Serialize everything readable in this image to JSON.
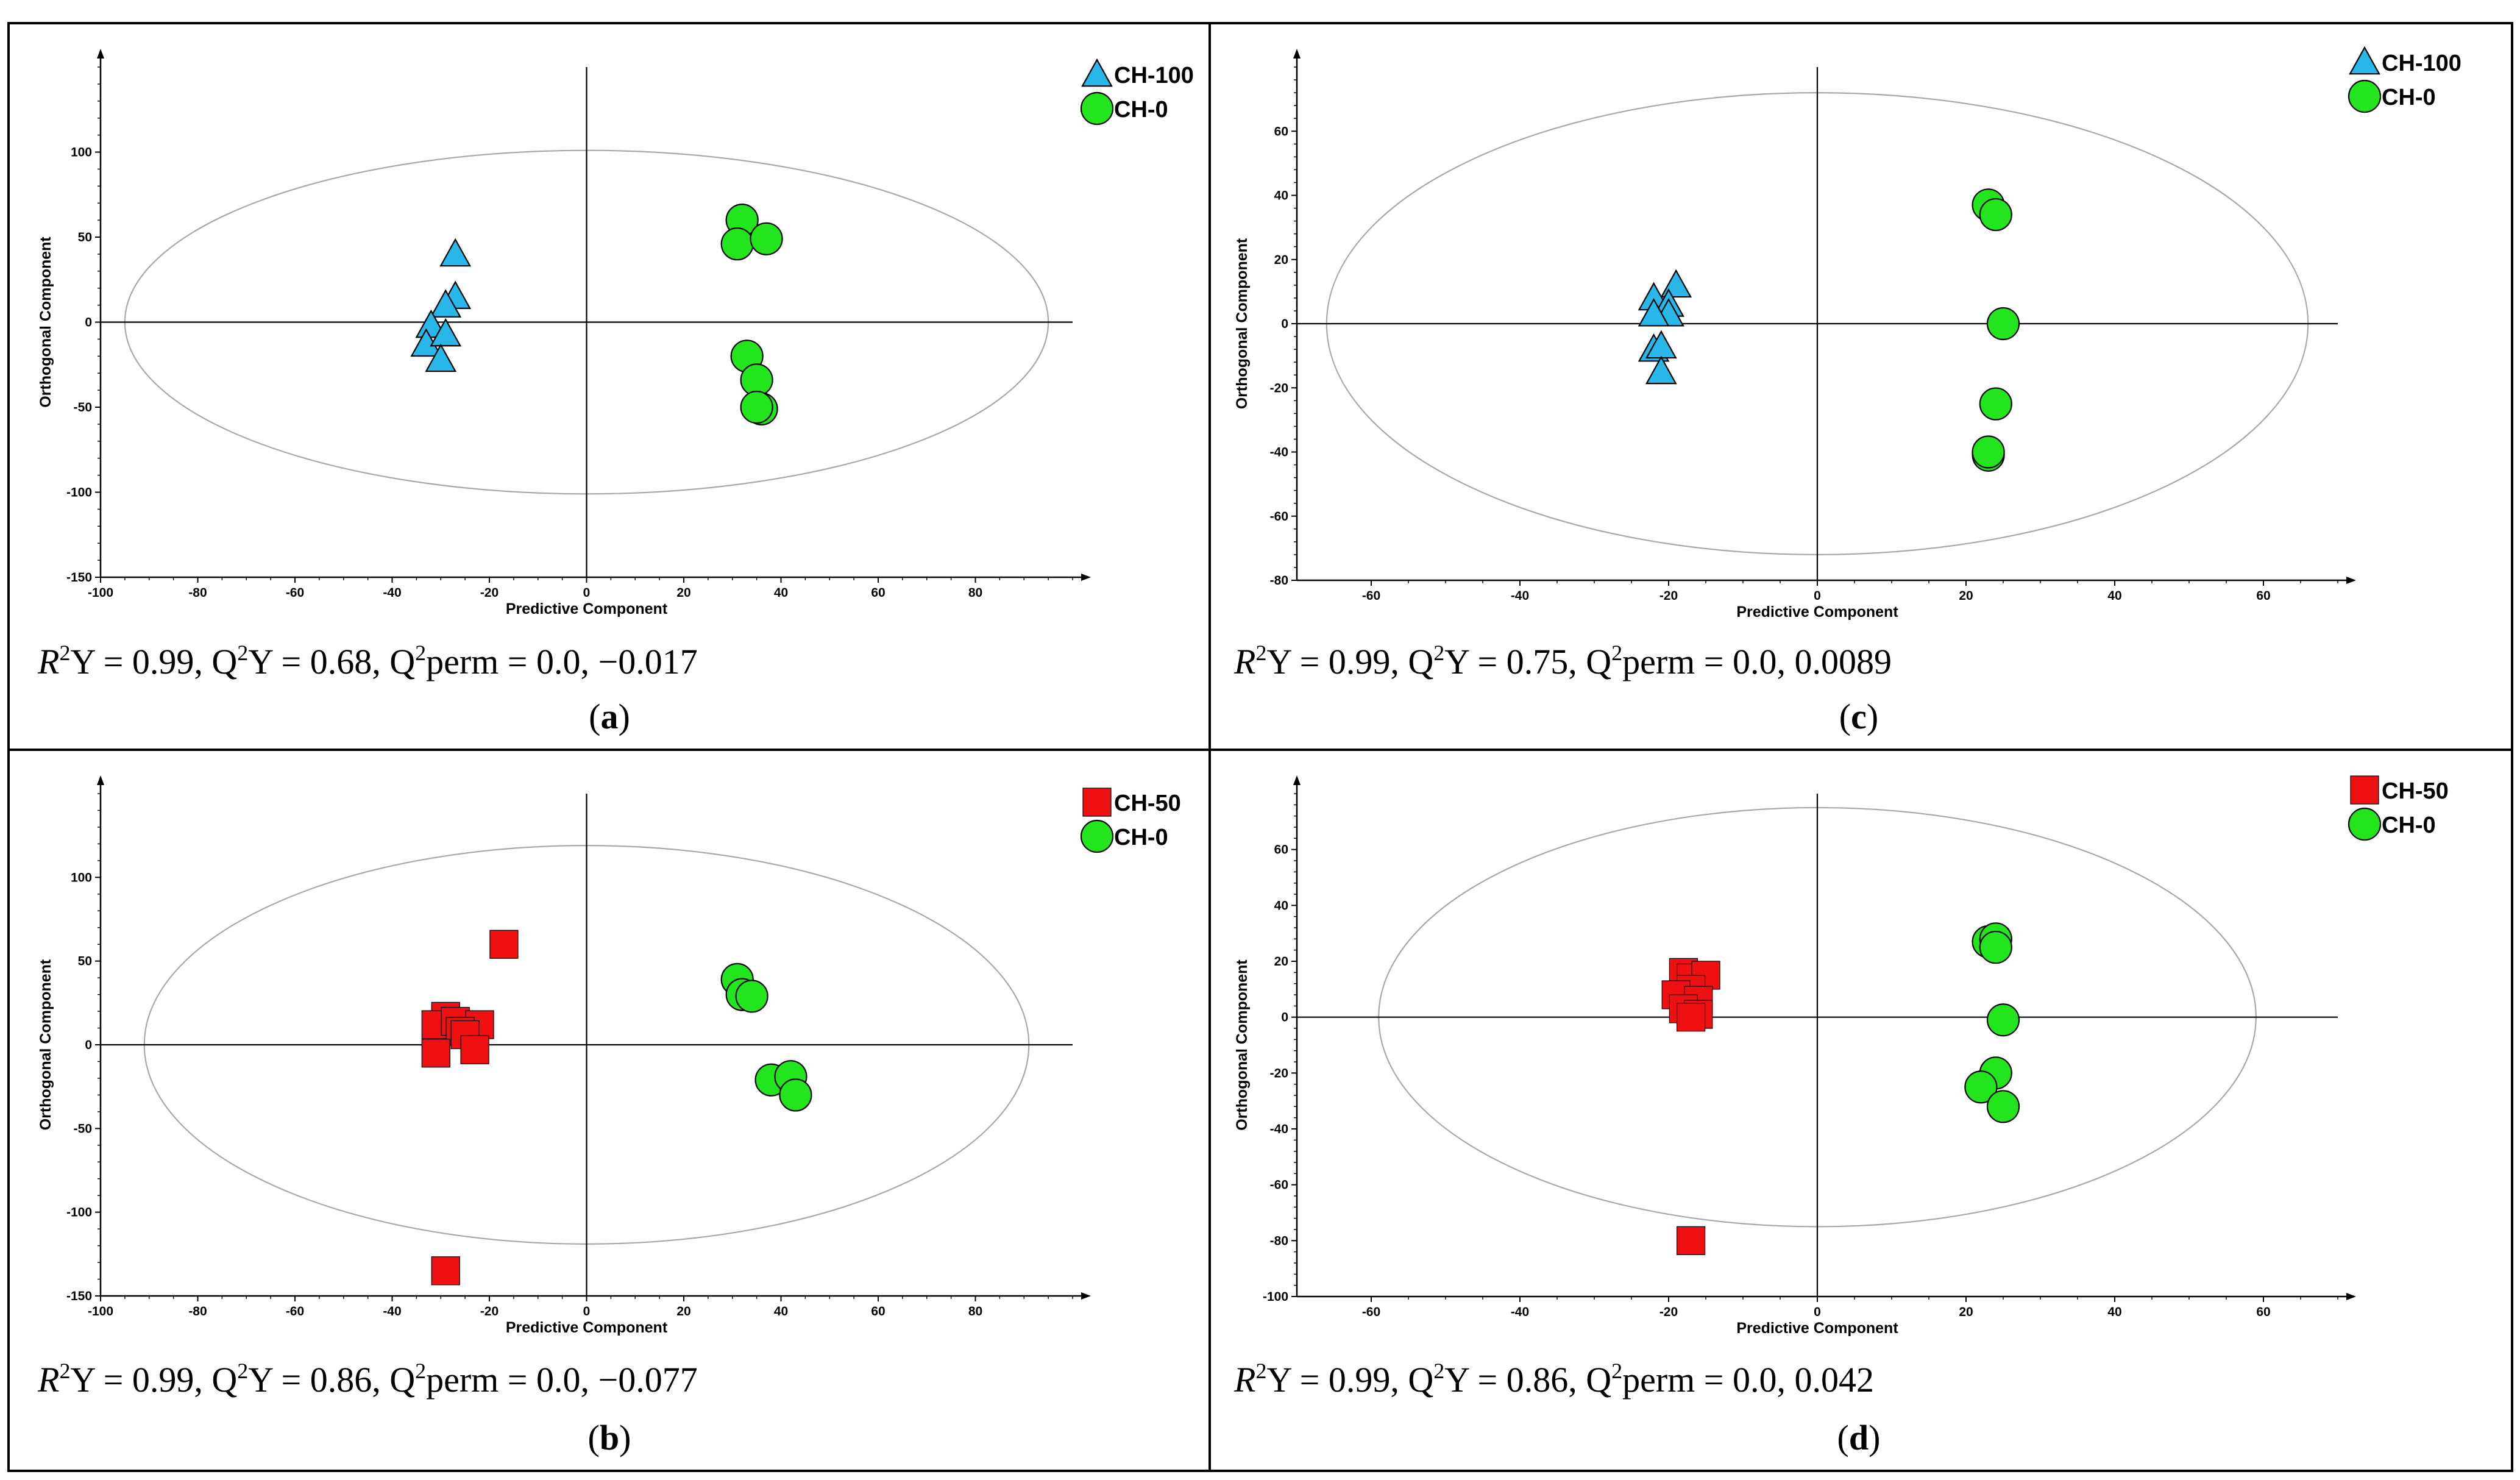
{
  "figure": {
    "panels": [
      {
        "id": "a",
        "caption_letter": "a",
        "stats": {
          "r2y": "0.99",
          "q2y": "0.68",
          "q2perm": "0.0, −0.017"
        }
      },
      {
        "id": "c",
        "caption_letter": "c",
        "stats": {
          "r2y": "0.99",
          "q2y": "0.75",
          "q2perm": "0.0, 0.0089"
        }
      },
      {
        "id": "b",
        "caption_letter": "b",
        "stats": {
          "r2y": "0.99",
          "q2y": "0.86",
          "q2perm": "0.0, −0.077"
        }
      },
      {
        "id": "d",
        "caption_letter": "d",
        "stats": {
          "r2y": "0.99",
          "q2y": "0.86",
          "q2perm": "0.0, 0.042"
        }
      }
    ],
    "stat_labels": {
      "r": "R",
      "q": "Q",
      "sup": "2",
      "y_eq": "Y = ",
      "perm_eq": "perm = ",
      "sep": ", "
    }
  },
  "colors": {
    "CH-100": "#29b6e8",
    "CH-0": "#22e51e",
    "CH-50": "#ef1111",
    "ellipse": "#a8a8a8"
  },
  "chart_data": [
    {
      "panel": "a",
      "type": "scatter",
      "title": "",
      "xlabel": "Predictive Component",
      "ylabel": "Orthogonal Component",
      "xlim": [
        -100,
        100
      ],
      "ylim": [
        -150,
        150
      ],
      "xticks": [
        -100,
        -80,
        -60,
        -40,
        -20,
        0,
        20,
        40,
        60,
        80
      ],
      "yticks": [
        -150,
        -100,
        -50,
        0,
        50,
        100
      ],
      "ellipse": {
        "rx": 95,
        "ry": 101
      },
      "legend": {
        "position": "top-right"
      },
      "series": [
        {
          "name": "CH-100",
          "marker": "triangle",
          "points": [
            [
              -27,
              40
            ],
            [
              -27,
              15
            ],
            [
              -29,
              10
            ],
            [
              -32,
              -2
            ],
            [
              -33,
              -13
            ],
            [
              -29,
              -7
            ],
            [
              -30,
              -22
            ]
          ]
        },
        {
          "name": "CH-0",
          "marker": "circle",
          "points": [
            [
              32,
              60
            ],
            [
              31,
              46
            ],
            [
              37,
              49
            ],
            [
              33,
              -20
            ],
            [
              35,
              -34
            ],
            [
              36,
              -51
            ],
            [
              35,
              -50
            ]
          ]
        }
      ]
    },
    {
      "panel": "c",
      "type": "scatter",
      "title": "",
      "xlabel": "Predictive Component",
      "ylabel": "Orthogonal Component",
      "xlim": [
        -70,
        70
      ],
      "ylim": [
        -80,
        80
      ],
      "xticks": [
        -60,
        -40,
        -20,
        0,
        20,
        40,
        60
      ],
      "yticks": [
        -80,
        -60,
        -40,
        -20,
        0,
        20,
        40,
        60
      ],
      "ellipse": {
        "rx": 66,
        "ry": 72
      },
      "legend": {
        "position": "top-right"
      },
      "series": [
        {
          "name": "CH-100",
          "marker": "triangle",
          "points": [
            [
              -19,
              12
            ],
            [
              -22,
              8
            ],
            [
              -20,
              6
            ],
            [
              -20,
              3
            ],
            [
              -22,
              3
            ],
            [
              -22,
              -8
            ],
            [
              -21,
              -7
            ],
            [
              -21,
              -15
            ]
          ]
        },
        {
          "name": "CH-0",
          "marker": "circle",
          "points": [
            [
              23,
              37
            ],
            [
              24,
              34
            ],
            [
              25,
              0
            ],
            [
              24,
              -25
            ],
            [
              23,
              -41
            ],
            [
              23,
              -40
            ]
          ]
        }
      ]
    },
    {
      "panel": "b",
      "type": "scatter",
      "title": "",
      "xlabel": "Predictive Component",
      "ylabel": "Orthogonal Component",
      "xlim": [
        -100,
        100
      ],
      "ylim": [
        -150,
        150
      ],
      "xticks": [
        -100,
        -80,
        -60,
        -40,
        -20,
        0,
        20,
        40,
        60,
        80
      ],
      "yticks": [
        -150,
        -100,
        -50,
        0,
        50,
        100
      ],
      "ellipse": {
        "rx": 91,
        "ry": 119
      },
      "legend": {
        "position": "top-right"
      },
      "series": [
        {
          "name": "CH-50",
          "marker": "square",
          "points": [
            [
              -17,
              60
            ],
            [
              -29,
              17
            ],
            [
              -31,
              12
            ],
            [
              -27,
              14
            ],
            [
              -22,
              12
            ],
            [
              -26,
              8
            ],
            [
              -25,
              6
            ],
            [
              -31,
              -5
            ],
            [
              -23,
              -3
            ],
            [
              -29,
              -135
            ]
          ]
        },
        {
          "name": "CH-0",
          "marker": "circle",
          "points": [
            [
              31,
              39
            ],
            [
              32,
              30
            ],
            [
              34,
              29
            ],
            [
              38,
              -21
            ],
            [
              42,
              -19
            ],
            [
              43,
              -30
            ]
          ]
        }
      ]
    },
    {
      "panel": "d",
      "type": "scatter",
      "title": "",
      "xlabel": "Predictive Component",
      "ylabel": "Orthogonal Component",
      "xlim": [
        -70,
        70
      ],
      "ylim": [
        -100,
        80
      ],
      "xticks": [
        -60,
        -40,
        -20,
        0,
        20,
        40,
        60
      ],
      "yticks": [
        -100,
        -80,
        -60,
        -40,
        -20,
        0,
        20,
        40,
        60
      ],
      "ellipse": {
        "rx": 59,
        "ry": 75
      },
      "legend": {
        "position": "top-right"
      },
      "series": [
        {
          "name": "CH-50",
          "marker": "square",
          "points": [
            [
              -18,
              16
            ],
            [
              -17,
              14
            ],
            [
              -15,
              15
            ],
            [
              -17,
              10
            ],
            [
              -19,
              8
            ],
            [
              -16,
              6
            ],
            [
              -18,
              3
            ],
            [
              -16,
              1
            ],
            [
              -17,
              0
            ],
            [
              -17,
              -80
            ]
          ]
        },
        {
          "name": "CH-0",
          "marker": "circle",
          "points": [
            [
              23,
              27
            ],
            [
              24,
              28
            ],
            [
              24,
              25
            ],
            [
              25,
              -1
            ],
            [
              24,
              -20
            ],
            [
              22,
              -25
            ],
            [
              25,
              -32
            ]
          ]
        }
      ]
    }
  ]
}
